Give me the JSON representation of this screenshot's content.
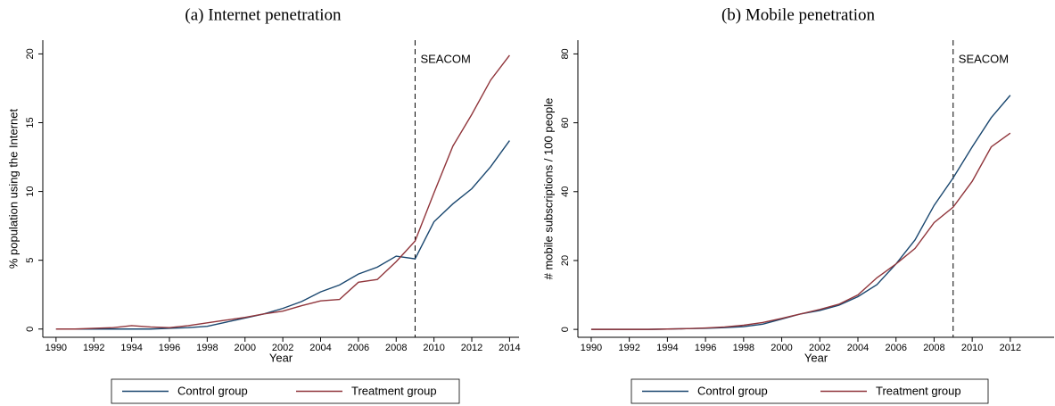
{
  "chart_data": [
    {
      "type": "line",
      "title": "(a) Internet penetration",
      "xlabel": "Year",
      "ylabel": "% population using the Internet",
      "x": [
        1990,
        1991,
        1992,
        1993,
        1994,
        1995,
        1996,
        1997,
        1998,
        1999,
        2000,
        2001,
        2002,
        2003,
        2004,
        2005,
        2006,
        2007,
        2008,
        2009,
        2010,
        2011,
        2012,
        2013,
        2014
      ],
      "series": [
        {
          "name": "Control group",
          "color": "#1a476f",
          "values": [
            0,
            0,
            0,
            0,
            0,
            0,
            0.05,
            0.1,
            0.2,
            0.5,
            0.8,
            1.1,
            1.5,
            2.0,
            2.7,
            3.2,
            4.0,
            4.5,
            5.3,
            5.1,
            7.8,
            9.1,
            10.2,
            11.8,
            13.7
          ]
        },
        {
          "name": "Treatment group",
          "color": "#90353b",
          "values": [
            0,
            0,
            0.05,
            0.1,
            0.25,
            0.15,
            0.1,
            0.25,
            0.45,
            0.65,
            0.85,
            1.1,
            1.3,
            1.7,
            2.05,
            2.15,
            3.4,
            3.6,
            4.9,
            6.4,
            9.9,
            13.3,
            15.6,
            18.1,
            19.9
          ]
        }
      ],
      "xlim": [
        1989.3,
        2014.5
      ],
      "xticks": [
        1990,
        1992,
        1994,
        1996,
        1998,
        2000,
        2002,
        2004,
        2006,
        2008,
        2010,
        2012,
        2014
      ],
      "ylim": [
        -0.6,
        21
      ],
      "yticks": [
        0,
        5,
        10,
        15,
        20
      ],
      "annotation": {
        "text": "SEACOM",
        "x": 2009
      }
    },
    {
      "type": "line",
      "title": "(b) Mobile penetration",
      "xlabel": "Year",
      "ylabel": "# mobile subscriptions / 100 people",
      "x": [
        1990,
        1991,
        1992,
        1993,
        1994,
        1995,
        1996,
        1997,
        1998,
        1999,
        2000,
        2001,
        2002,
        2003,
        2004,
        2005,
        2006,
        2007,
        2008,
        2009,
        2010,
        2011,
        2012
      ],
      "series": [
        {
          "name": "Control group",
          "color": "#1a476f",
          "values": [
            0,
            0,
            0,
            0,
            0.1,
            0.2,
            0.3,
            0.5,
            0.8,
            1.5,
            3,
            4.5,
            5.5,
            7,
            9.5,
            13,
            19,
            26,
            36,
            44,
            53,
            61.5,
            68
          ]
        },
        {
          "name": "Treatment group",
          "color": "#90353b",
          "values": [
            0,
            0,
            0,
            0,
            0.1,
            0.2,
            0.4,
            0.7,
            1.2,
            2,
            3.2,
            4.5,
            5.8,
            7.3,
            10,
            15,
            19,
            23.5,
            31,
            35.5,
            43,
            53,
            57
          ]
        }
      ],
      "xlim": [
        1989.3,
        2014.3
      ],
      "xticks": [
        1990,
        1992,
        1994,
        1996,
        1998,
        2000,
        2002,
        2004,
        2006,
        2008,
        2010,
        2012
      ],
      "ylim": [
        -2.3,
        84
      ],
      "yticks": [
        0,
        20,
        40,
        60,
        80
      ],
      "annotation": {
        "text": "SEACOM",
        "x": 2009
      }
    }
  ]
}
